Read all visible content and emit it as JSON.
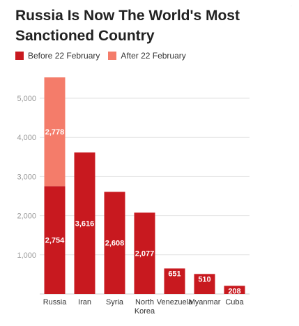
{
  "header": {
    "title_line1": "Russia Is Now The World's Most",
    "title_line2": "Sanctioned Country",
    "corner_mark": "·"
  },
  "legend": [
    {
      "label": "Before 22 February",
      "color": "#c8191f"
    },
    {
      "label": "After 22 February",
      "color": "#f47c6a"
    }
  ],
  "chart_data": {
    "type": "bar",
    "stacked": true,
    "categories": [
      "Russia",
      "Iran",
      "Syria",
      "North Korea",
      "Venezuela",
      "Myanmar",
      "Cuba"
    ],
    "category_lines": [
      [
        "Russia"
      ],
      [
        "Iran"
      ],
      [
        "Syria"
      ],
      [
        "North",
        "Korea"
      ],
      [
        "Venezuela"
      ],
      [
        "Myanmar"
      ],
      [
        "Cuba"
      ]
    ],
    "series": [
      {
        "name": "Before 22 February",
        "color": "#c8191f",
        "values": [
          2754,
          3616,
          2608,
          2077,
          651,
          510,
          208
        ]
      },
      {
        "name": "After 22 February",
        "color": "#f47c6a",
        "values": [
          2778,
          0,
          0,
          0,
          0,
          0,
          0
        ]
      }
    ],
    "data_labels": {
      "series0": [
        "2,754",
        "3,616",
        "2,608",
        "2,077",
        "651",
        "510",
        "208"
      ],
      "series1": [
        "2,778",
        "",
        "",
        "",
        "",
        "",
        ""
      ]
    },
    "yticks": [
      1000,
      2000,
      3000,
      4000,
      5000
    ],
    "ytick_labels": [
      "1,000",
      "2,000",
      "3,000",
      "4,000",
      "5,000"
    ],
    "ylim": [
      0,
      5700
    ],
    "grid": true,
    "legend_position": "top-left",
    "title": "Russia Is Now The World's Most Sanctioned Country",
    "xlabel": "",
    "ylabel": ""
  }
}
